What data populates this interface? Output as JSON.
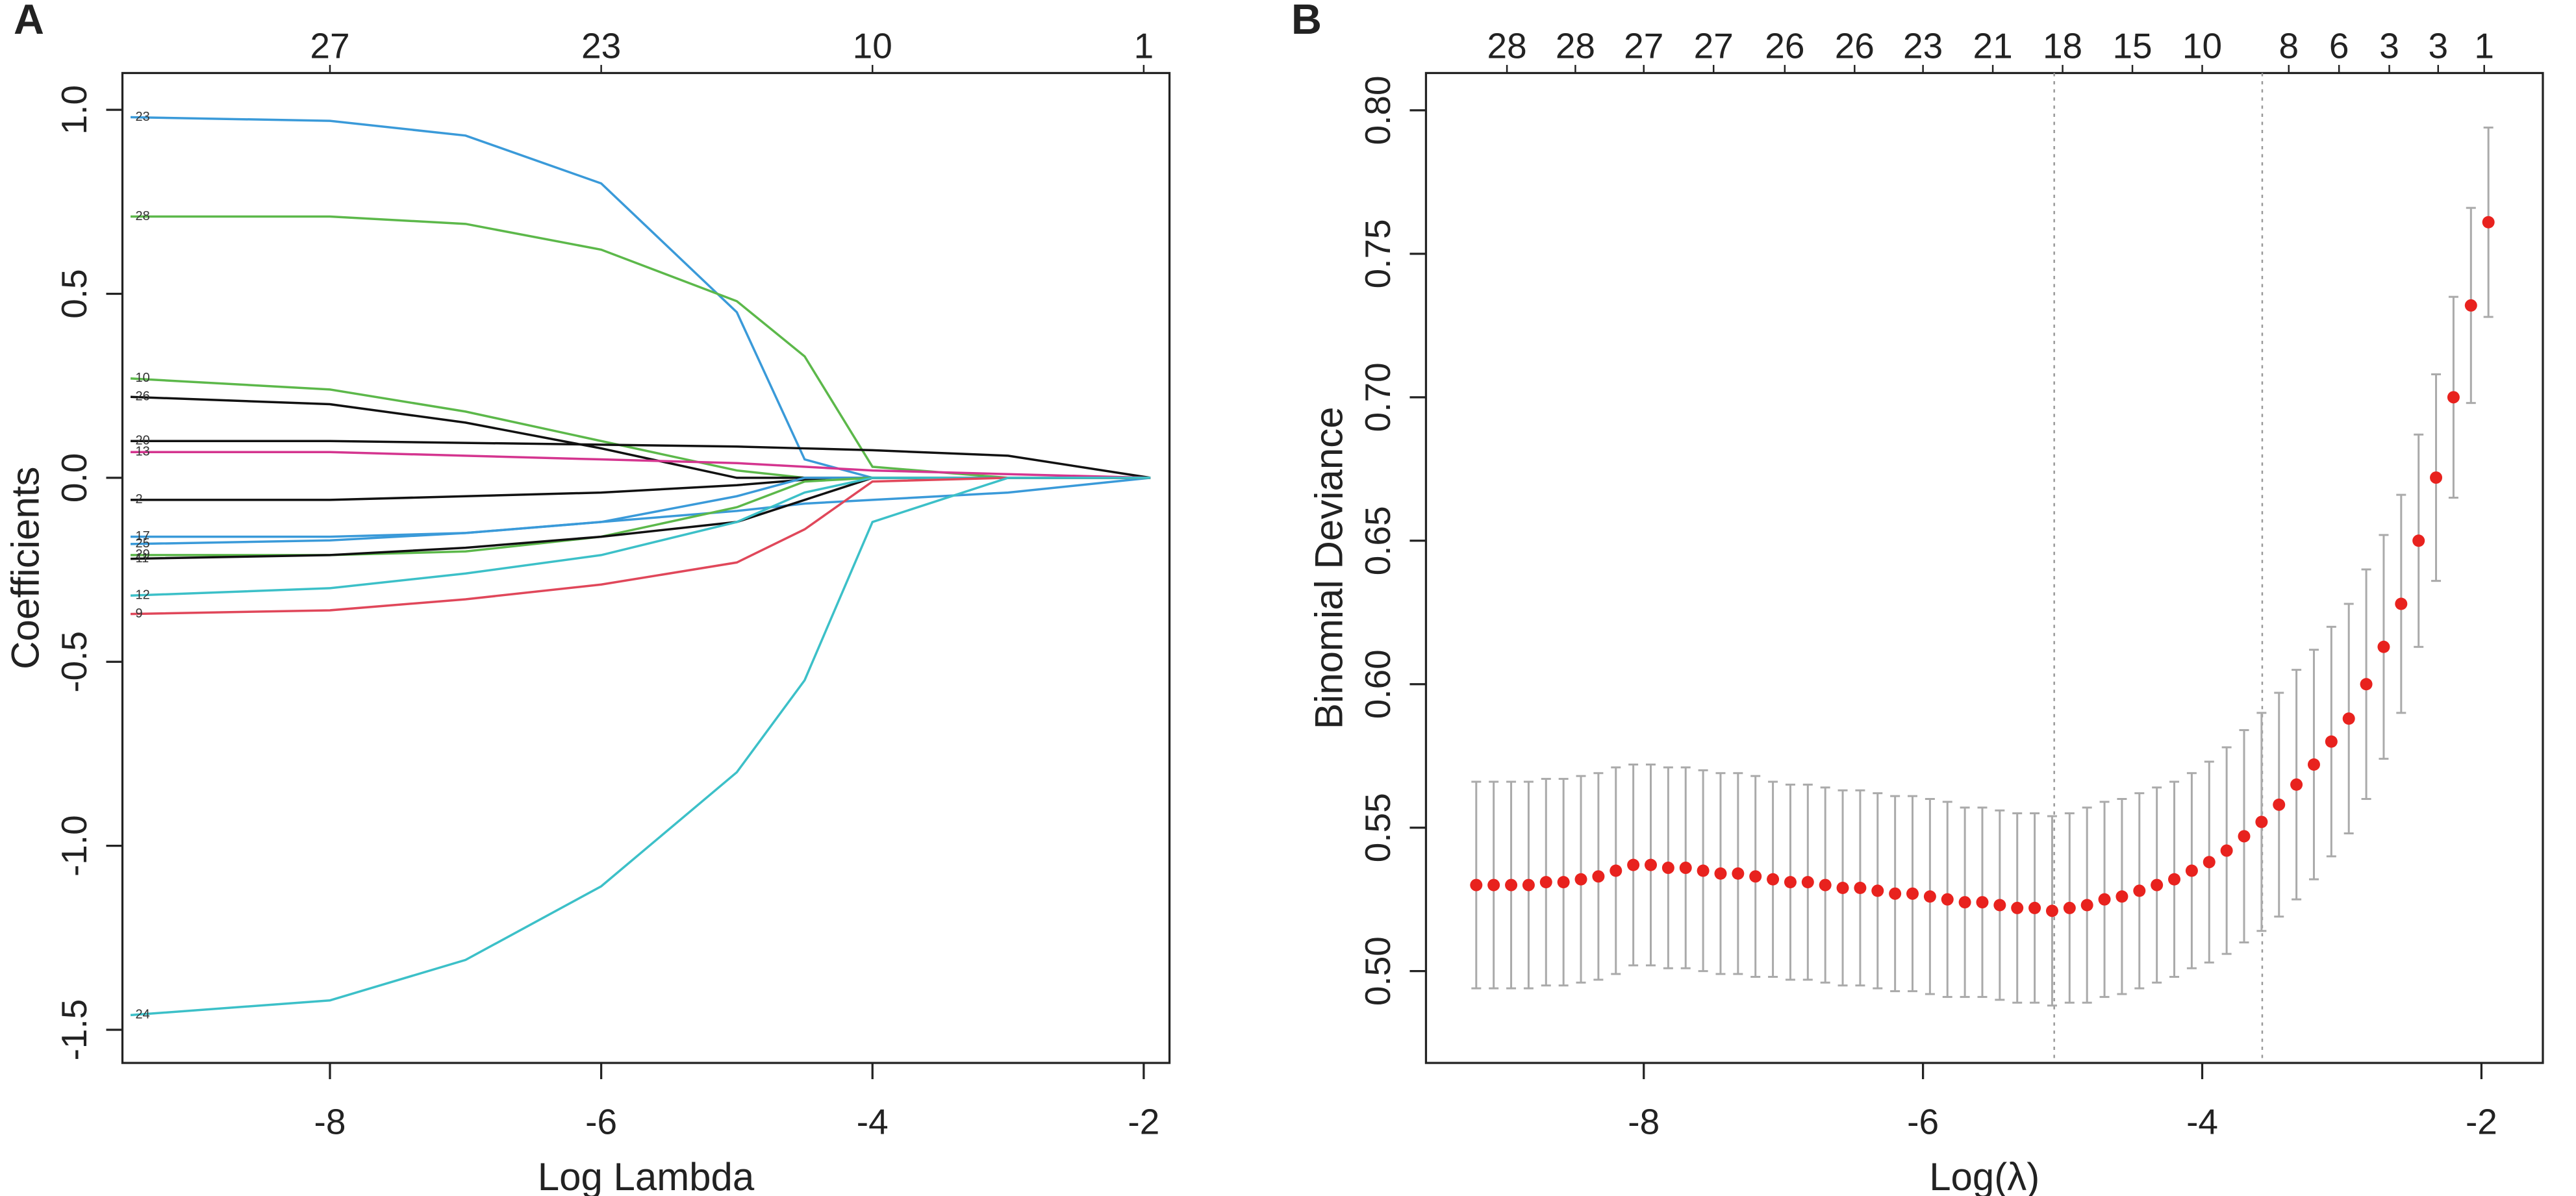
{
  "chart_data": [
    {
      "type": "line",
      "panel_label": "A",
      "xlabel": "Log Lambda",
      "ylabel": "Coefficients",
      "xlim": [
        -9.53,
        -1.81
      ],
      "ylim": [
        -1.59,
        1.1
      ],
      "xticks": [
        -8,
        -6,
        -4,
        -2
      ],
      "yticks": [
        {
          "value": 1,
          "label": "1.0"
        },
        0.5,
        {
          "value": 0,
          "label": "0.0"
        },
        -0.5,
        {
          "value": -1,
          "label": "-1.0"
        },
        -1.5
      ],
      "top_ticks": [
        {
          "value": -8,
          "label": "27"
        },
        {
          "value": -6,
          "label": "23"
        },
        {
          "value": -4,
          "label": "10"
        },
        {
          "value": -2,
          "label": "1"
        }
      ],
      "x": [
        -9.47,
        -8,
        -7,
        -6,
        -5,
        -4.5,
        -4,
        -3,
        -1.95
      ],
      "series": [
        {
          "name": "23",
          "color": "#3a9ad9",
          "values": [
            0.98,
            0.97,
            0.93,
            0.8,
            0.45,
            0.05,
            0,
            0,
            0
          ]
        },
        {
          "name": "28",
          "color": "#5cb84a",
          "values": [
            0.71,
            0.71,
            0.69,
            0.62,
            0.48,
            0.33,
            0.03,
            0,
            0
          ]
        },
        {
          "name": "10",
          "color": "#5cb84a",
          "values": [
            0.27,
            0.24,
            0.18,
            0.1,
            0.02,
            0,
            0,
            0,
            0
          ]
        },
        {
          "name": "26",
          "color": "#111111",
          "values": [
            0.22,
            0.2,
            0.15,
            0.08,
            0,
            0,
            0,
            0,
            0
          ]
        },
        {
          "name": "20",
          "color": "#111111",
          "values": [
            0.1,
            0.1,
            0.095,
            0.09,
            0.085,
            0.08,
            0.075,
            0.06,
            0
          ]
        },
        {
          "name": "13",
          "color": "#d4358f",
          "values": [
            0.07,
            0.07,
            0.06,
            0.05,
            0.04,
            0.03,
            0.02,
            0.01,
            0
          ]
        },
        {
          "name": "2",
          "color": "#111111",
          "values": [
            -0.06,
            -0.06,
            -0.05,
            -0.04,
            -0.02,
            -0.005,
            0,
            0,
            0
          ]
        },
        {
          "name": "17",
          "color": "#3a9ad9",
          "values": [
            -0.16,
            -0.16,
            -0.15,
            -0.12,
            -0.05,
            0,
            0,
            0,
            0
          ]
        },
        {
          "name": "25",
          "color": "#3a9ad9",
          "values": [
            -0.18,
            -0.17,
            -0.15,
            -0.12,
            -0.09,
            -0.07,
            -0.06,
            -0.04,
            0
          ]
        },
        {
          "name": "29",
          "color": "#5cb84a",
          "values": [
            -0.21,
            -0.21,
            -0.2,
            -0.16,
            -0.08,
            -0.01,
            0,
            0,
            0
          ]
        },
        {
          "name": "11",
          "color": "#111111",
          "values": [
            -0.22,
            -0.21,
            -0.19,
            -0.16,
            -0.12,
            -0.06,
            0,
            0,
            0
          ]
        },
        {
          "name": "12",
          "color": "#3cc0c8",
          "values": [
            -0.32,
            -0.3,
            -0.26,
            -0.21,
            -0.12,
            -0.04,
            0,
            0,
            0
          ]
        },
        {
          "name": "9",
          "color": "#e0475a",
          "values": [
            -0.37,
            -0.36,
            -0.33,
            -0.29,
            -0.23,
            -0.14,
            -0.01,
            0,
            0
          ]
        },
        {
          "name": "24",
          "color": "#3cc0c8",
          "values": [
            -1.46,
            -1.42,
            -1.31,
            -1.11,
            -0.8,
            -0.55,
            -0.12,
            0,
            0
          ]
        }
      ]
    },
    {
      "type": "errorbar",
      "panel_label": "B",
      "xlabel": "Log(λ)",
      "ylabel": "Binomial Deviance",
      "xlim": [
        -9.56,
        -1.56
      ],
      "ylim": [
        0.468,
        0.813
      ],
      "xticks": [
        -8,
        -6,
        -4,
        -2
      ],
      "yticks": [
        {
          "value": 0.8,
          "label": "0.80"
        },
        0.75,
        {
          "value": 0.7,
          "label": "0.70"
        },
        0.65,
        {
          "value": 0.6,
          "label": "0.60"
        },
        0.55,
        {
          "value": 0.5,
          "label": "0.50"
        }
      ],
      "top_ticks": [
        {
          "value": -8.98,
          "label": "28"
        },
        {
          "value": -8.49,
          "label": "28"
        },
        {
          "value": -8,
          "label": "27"
        },
        {
          "value": -7.5,
          "label": "27"
        },
        {
          "value": -6.99,
          "label": "26"
        },
        {
          "value": -6.49,
          "label": "26"
        },
        {
          "value": -6,
          "label": "23"
        },
        {
          "value": -5.5,
          "label": "21"
        },
        {
          "value": -5,
          "label": "18"
        },
        {
          "value": -4.5,
          "label": "15"
        },
        {
          "value": -4,
          "label": "10"
        },
        {
          "value": -3.38,
          "label": "8"
        },
        {
          "value": -3.02,
          "label": "6"
        },
        {
          "value": -2.66,
          "label": "3"
        },
        {
          "value": -2.31,
          "label": "3"
        },
        {
          "value": -1.98,
          "label": "1"
        }
      ],
      "vlines": [
        -5.06,
        -3.57
      ],
      "color": "#e8221e",
      "error_color": "#aaaaaa",
      "x": [
        -9.2,
        -9.075,
        -8.95,
        -8.825,
        -8.7,
        -8.575,
        -8.45,
        -8.325,
        -8.2,
        -8.075,
        -7.95,
        -7.825,
        -7.7,
        -7.575,
        -7.45,
        -7.325,
        -7.2,
        -7.075,
        -6.95,
        -6.825,
        -6.7,
        -6.575,
        -6.45,
        -6.325,
        -6.2,
        -6.075,
        -5.95,
        -5.825,
        -5.7,
        -5.575,
        -5.45,
        -5.325,
        -5.2,
        -5.075,
        -4.95,
        -4.825,
        -4.7,
        -4.575,
        -4.45,
        -4.325,
        -4.2,
        -4.075,
        -3.95,
        -3.825,
        -3.7,
        -3.575,
        -3.45,
        -3.325,
        -3.2,
        -3.075,
        -2.95,
        -2.825,
        -2.7,
        -2.575,
        -2.45,
        -2.325,
        -2.2,
        -2.075,
        -1.95
      ],
      "values": [
        0.53,
        0.53,
        0.53,
        0.53,
        0.531,
        0.531,
        0.532,
        0.533,
        0.535,
        0.537,
        0.537,
        0.536,
        0.536,
        0.535,
        0.534,
        0.534,
        0.533,
        0.532,
        0.531,
        0.531,
        0.53,
        0.529,
        0.529,
        0.528,
        0.527,
        0.527,
        0.526,
        0.525,
        0.524,
        0.524,
        0.523,
        0.522,
        0.522,
        0.521,
        0.522,
        0.523,
        0.525,
        0.526,
        0.528,
        0.53,
        0.532,
        0.535,
        0.538,
        0.542,
        0.547,
        0.552,
        0.558,
        0.565,
        0.572,
        0.58,
        0.588,
        0.6,
        0.613,
        0.628,
        0.65,
        0.672,
        0.7,
        0.732,
        0.761
      ],
      "errors": [
        0.036,
        0.036,
        0.036,
        0.036,
        0.036,
        0.036,
        0.036,
        0.036,
        0.036,
        0.035,
        0.035,
        0.035,
        0.035,
        0.035,
        0.035,
        0.035,
        0.035,
        0.034,
        0.034,
        0.034,
        0.034,
        0.034,
        0.034,
        0.034,
        0.034,
        0.034,
        0.034,
        0.034,
        0.033,
        0.033,
        0.033,
        0.033,
        0.033,
        0.033,
        0.033,
        0.034,
        0.034,
        0.034,
        0.034,
        0.034,
        0.034,
        0.034,
        0.035,
        0.036,
        0.037,
        0.038,
        0.039,
        0.04,
        0.04,
        0.04,
        0.04,
        0.04,
        0.039,
        0.038,
        0.037,
        0.036,
        0.035,
        0.034,
        0.033
      ]
    }
  ]
}
